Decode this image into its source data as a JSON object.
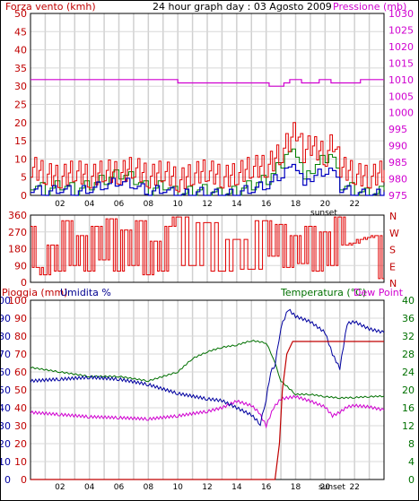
{
  "header": {
    "left_label": "Forza vento (kmh)",
    "title": "24 hour graph day : 03 Agosto 2009",
    "right_label": "Pressione (mb)"
  },
  "colors": {
    "wind": "#e00000",
    "gust": "#0000c0",
    "wind_green": "#008000",
    "pressure": "#d000d0",
    "rain": "#c00000",
    "humidity": "#000090",
    "temperature": "#007000",
    "dewpoint": "#d000d0",
    "grid": "#cccccc",
    "frame": "#000000"
  },
  "chart_data": [
    {
      "type": "line",
      "name": "wind_pressure",
      "title": "24 hour graph day : 03 Agosto 2009",
      "ylabel_left": "Forza vento (kmh)",
      "ylabel_right": "Pressione (mb)",
      "y_left_ticks": [
        "0",
        "5",
        "10",
        "15",
        "20",
        "25",
        "30",
        "35",
        "40",
        "45",
        "50"
      ],
      "y_right_ticks": [
        "975",
        "980",
        "985",
        "990",
        "995",
        "1000",
        "1005",
        "1010",
        "1015",
        "1020",
        "1025",
        "1030"
      ],
      "x_ticks": [
        "02",
        "04",
        "06",
        "08",
        "10",
        "12",
        "14",
        "16",
        "18",
        "20",
        "22"
      ],
      "sunset_label": "sunset",
      "ylim_left": [
        0,
        50
      ],
      "ylim_right": [
        975,
        1030
      ],
      "series": [
        {
          "role": "pressure",
          "hours": [
            0,
            8,
            9,
            9.5,
            10,
            15,
            15.6,
            16.2,
            16.6,
            17.2,
            17.6,
            18.4,
            19.6,
            20.4,
            21.6,
            22.4,
            23.2,
            24
          ],
          "values": [
            1010,
            1010,
            1010,
            1010,
            1009,
            1009,
            1009,
            1008,
            1008,
            1009,
            1010,
            1009,
            1010,
            1009,
            1009,
            1010,
            1010,
            1010
          ]
        },
        {
          "role": "wind",
          "hours": [
            0,
            1,
            2,
            3,
            4,
            5,
            6,
            7,
            8,
            9,
            10,
            11,
            12,
            13,
            14,
            15,
            16,
            17,
            17.5,
            18,
            18.5,
            19,
            20,
            20.5,
            21,
            22,
            23,
            24
          ],
          "values": [
            8,
            6,
            5,
            7,
            5,
            7,
            6,
            8,
            5,
            7,
            4,
            6,
            7,
            5,
            6,
            8,
            8,
            12,
            15,
            18,
            12,
            14,
            11,
            15,
            8,
            6,
            5,
            7
          ]
        },
        {
          "role": "gust",
          "hours": [
            0,
            1,
            2,
            3,
            4,
            5,
            6,
            7,
            8,
            9,
            10,
            11,
            12,
            13,
            14,
            15,
            16,
            17,
            17.5,
            18,
            18.5,
            19,
            20,
            20.5,
            21,
            22,
            23,
            24
          ],
          "values": [
            2,
            1,
            2,
            1,
            2,
            3,
            4,
            3,
            1,
            2,
            0,
            1,
            1,
            0,
            1,
            2,
            3,
            6,
            9,
            8,
            4,
            5,
            7,
            8,
            2,
            1,
            0,
            1
          ]
        }
      ]
    },
    {
      "type": "line",
      "name": "wind_direction",
      "y_ticks": [
        "360",
        "270",
        "180",
        "90",
        "0"
      ],
      "y_right_labels": [
        "N",
        "W",
        "S",
        "E",
        "N"
      ],
      "ylim": [
        0,
        360
      ],
      "series": [
        {
          "role": "direction",
          "hours": [
            0,
            0.5,
            1,
            1.5,
            2,
            2.5,
            3,
            3.5,
            4,
            4.5,
            5,
            5.5,
            6,
            6.5,
            7,
            7.5,
            8,
            8.5,
            9,
            9.5,
            10,
            11,
            12,
            13,
            14,
            15,
            16,
            16.5,
            17,
            17.5,
            18,
            18.5,
            19,
            19.5,
            20,
            20.5,
            21,
            21.5,
            22,
            22.5,
            23,
            23.5,
            24
          ],
          "values": [
            300,
            80,
            40,
            200,
            60,
            330,
            90,
            250,
            60,
            300,
            120,
            340,
            60,
            280,
            90,
            330,
            40,
            220,
            60,
            300,
            350,
            90,
            320,
            60,
            230,
            70,
            330,
            140,
            310,
            80,
            250,
            100,
            300,
            60,
            270,
            90,
            350,
            200,
            210,
            230,
            240,
            250,
            20
          ]
        }
      ]
    },
    {
      "type": "line",
      "name": "rain_humidity_temperature",
      "ylabel_left": "Pioggia (mm)",
      "ylabel_left2": "Umidita %",
      "ylabel_right": "Temperatura (°C)",
      "ylabel_right2": "Dew Point",
      "y_left_ticks": [
        "0",
        "10",
        "20",
        "30",
        "40",
        "50",
        "60",
        "70",
        "80",
        "90",
        "100"
      ],
      "y_right_ticks": [
        "0",
        "4",
        "8",
        "12",
        "16",
        "20",
        "24",
        "28",
        "32",
        "36",
        "40"
      ],
      "x_ticks": [
        "02",
        "04",
        "06",
        "08",
        "10",
        "12",
        "14",
        "16",
        "18",
        "20",
        "22"
      ],
      "sunset_label": "sunset",
      "ylim_left": [
        0,
        100
      ],
      "ylim_right": [
        0,
        40
      ],
      "series": [
        {
          "role": "humidity",
          "hours": [
            0,
            2,
            4,
            6,
            8,
            10,
            12,
            13,
            14,
            15,
            15.6,
            16,
            16.3,
            16.6,
            17,
            17.5,
            18,
            19,
            20,
            20.5,
            21,
            21.5,
            22,
            23,
            24
          ],
          "values": [
            55,
            56,
            57,
            56,
            53,
            48,
            45,
            44,
            40,
            36,
            31,
            45,
            60,
            64,
            85,
            95,
            91,
            88,
            82,
            70,
            62,
            87,
            88,
            84,
            82
          ]
        },
        {
          "role": "temperature",
          "hours": [
            0,
            2,
            4,
            6,
            8,
            10,
            11,
            12,
            13,
            14,
            15,
            16,
            16.5,
            17,
            18,
            19,
            20,
            21,
            22,
            23,
            24
          ],
          "values": [
            25,
            24,
            23,
            23,
            22,
            24,
            27,
            28.5,
            29.5,
            30,
            31,
            30.5,
            27,
            22,
            19,
            19,
            18.5,
            18.2,
            18.3,
            18.5,
            18.6
          ]
        },
        {
          "role": "dewpoint",
          "hours": [
            0,
            2,
            4,
            6,
            8,
            10,
            12,
            13,
            14,
            15,
            15.5,
            16,
            16.5,
            17,
            18,
            19,
            20,
            20.5,
            21,
            21.5,
            22,
            23,
            24
          ],
          "values": [
            15,
            14.5,
            14,
            13.8,
            13.5,
            14.2,
            15.2,
            16,
            17.5,
            16.5,
            15,
            12,
            16,
            18,
            18.5,
            17.5,
            16.2,
            14.2,
            15,
            16.2,
            16.5,
            16.2,
            15.5
          ]
        },
        {
          "role": "rain",
          "hours": [
            0,
            16,
            16.6,
            16.9,
            17.1,
            17.4,
            17.8,
            24
          ],
          "values": [
            0,
            0,
            0,
            20,
            50,
            70,
            77,
            77
          ]
        }
      ]
    }
  ]
}
